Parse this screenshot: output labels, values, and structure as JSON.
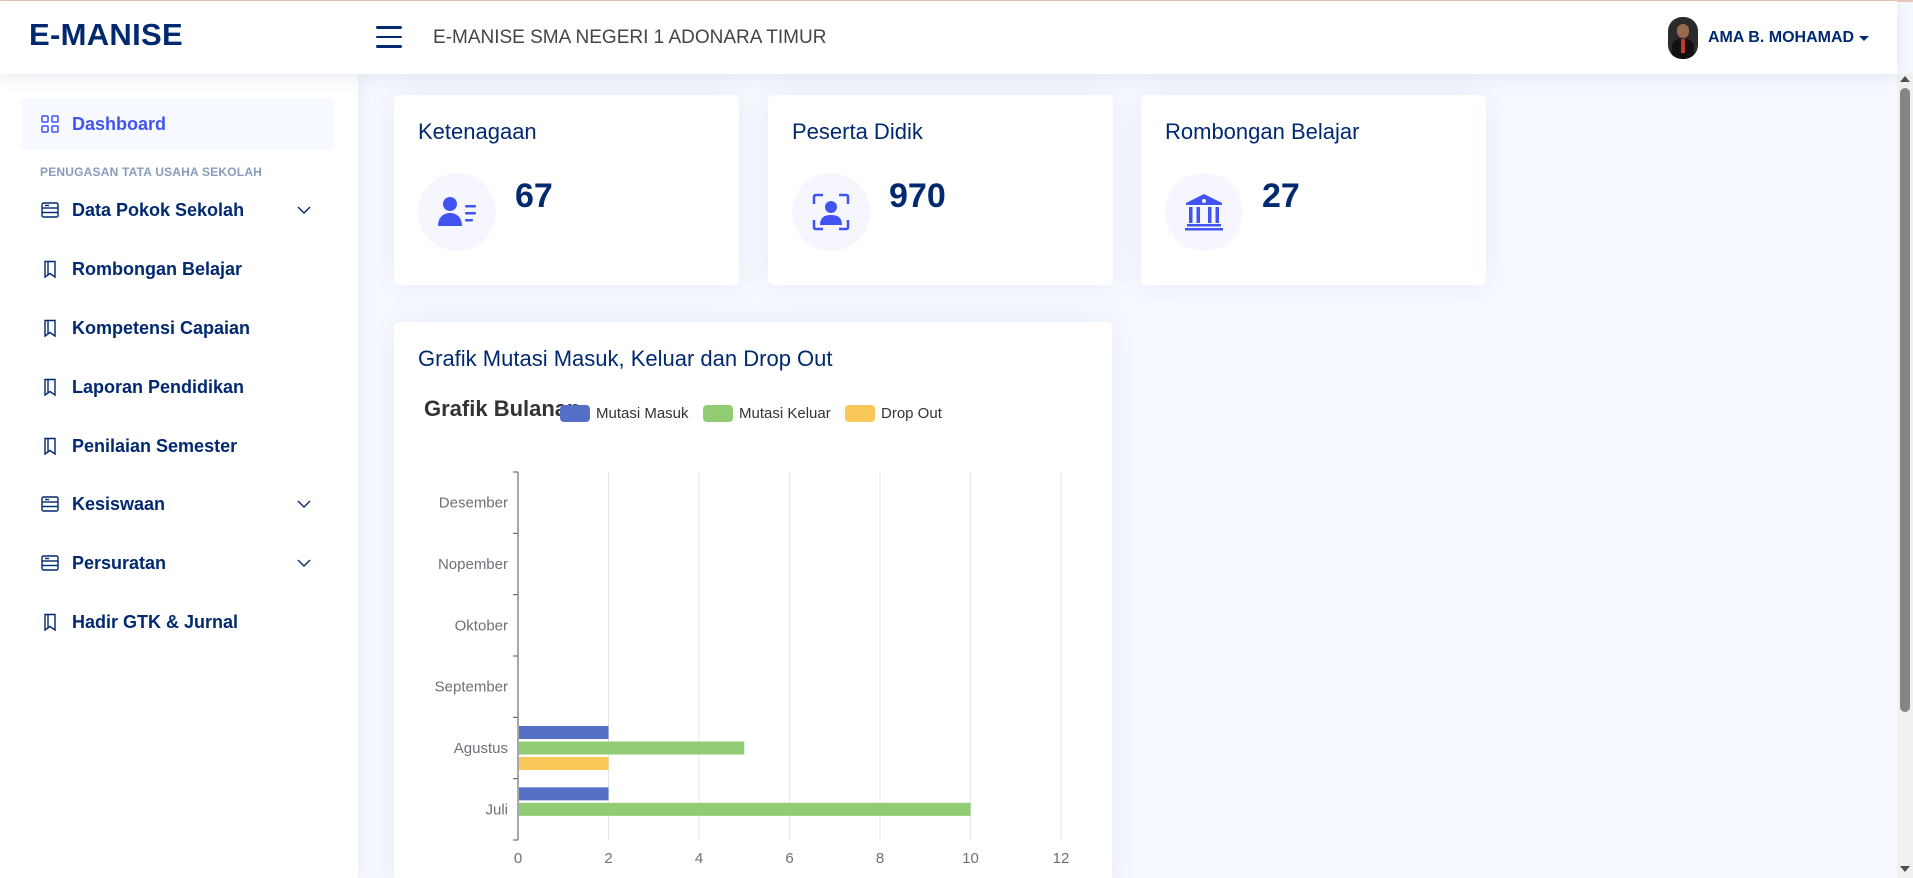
{
  "header": {
    "logo": "E-MANISE",
    "title": "E-MANISE SMA NEGERI 1 ADONARA TIMUR",
    "user_name": "AMA B. MOHAMAD"
  },
  "sidebar": {
    "dashboard": {
      "label": "Dashboard",
      "icon": "grid-icon"
    },
    "heading": "PENUGASAN TATA USAHA SEKOLAH",
    "items": [
      {
        "label": "Data Pokok Sekolah",
        "icon": "layout-icon",
        "has_chevron": true
      },
      {
        "label": "Rombongan Belajar",
        "icon": "bookmark-icon",
        "has_chevron": false
      },
      {
        "label": "Kompetensi Capaian",
        "icon": "bookmark-icon",
        "has_chevron": false
      },
      {
        "label": "Laporan Pendidikan",
        "icon": "bookmark-icon",
        "has_chevron": false
      },
      {
        "label": "Penilaian Semester",
        "icon": "bookmark-icon",
        "has_chevron": false
      },
      {
        "label": "Kesiswaan",
        "icon": "layout-icon",
        "has_chevron": true
      },
      {
        "label": "Persuratan",
        "icon": "layout-icon",
        "has_chevron": true
      },
      {
        "label": "Hadir GTK & Jurnal",
        "icon": "bookmark-icon",
        "has_chevron": false
      }
    ]
  },
  "stats": [
    {
      "title": "Ketenagaan",
      "value": "67",
      "icon": "person-lines-icon"
    },
    {
      "title": "Peserta Didik",
      "value": "970",
      "icon": "person-bounding-box-icon"
    },
    {
      "title": "Rombongan Belajar",
      "value": "27",
      "icon": "bank-icon"
    }
  ],
  "colors": {
    "primary": "#012970",
    "accent": "#4154f1",
    "mutasi_masuk": "#5470c6",
    "mutasi_keluar": "#91cc75",
    "drop_out": "#fac858"
  },
  "chart_card": {
    "title": "Grafik Mutasi Masuk, Keluar dan Drop Out"
  },
  "chart_data": {
    "type": "bar",
    "orientation": "horizontal",
    "title": "Grafik Bulanan",
    "categories": [
      "Juli",
      "Agustus",
      "September",
      "Oktober",
      "Nopember",
      "Desember"
    ],
    "series": [
      {
        "name": "Mutasi Masuk",
        "values": [
          2,
          2,
          0,
          0,
          0,
          0
        ]
      },
      {
        "name": "Mutasi Keluar",
        "values": [
          10,
          5,
          0,
          0,
          0,
          0
        ]
      },
      {
        "name": "Drop Out",
        "values": [
          0,
          2,
          0,
          0,
          0,
          0
        ]
      }
    ],
    "xlim": [
      0,
      12
    ],
    "xticks": [
      0,
      2,
      4,
      6,
      8,
      10,
      12
    ],
    "legend_position": "top",
    "grid": true
  }
}
